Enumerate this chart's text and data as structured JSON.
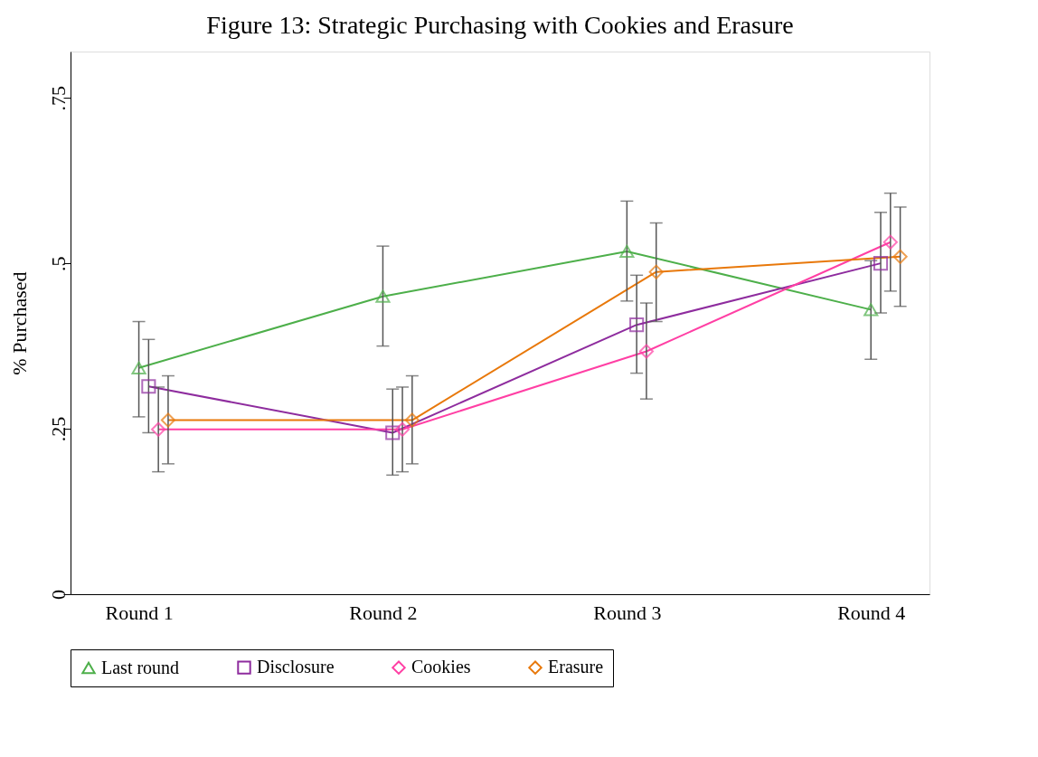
{
  "chart_data": {
    "type": "line",
    "title": "Figure 13: Strategic Purchasing with Cookies and Erasure",
    "ylabel": "% Purchased",
    "categories": [
      "Round 1",
      "Round 2",
      "Round 3",
      "Round 4"
    ],
    "ylim": [
      0,
      0.82
    ],
    "yticks": [
      0,
      {
        "value": 0.25,
        "label": ".25"
      },
      {
        "value": 0.5,
        "label": ".5"
      },
      {
        "value": 0.75,
        "label": ".75"
      }
    ],
    "grid": false,
    "legend": "bottom",
    "line_style": "solid",
    "series": [
      {
        "name": "Last round",
        "color": "#4daf4a",
        "marker": "triangle",
        "values": [
          0.342,
          0.45,
          0.518,
          0.43
        ],
        "errors": [
          [
            0.268,
            0.412
          ],
          [
            0.375,
            0.526
          ],
          [
            0.443,
            0.594
          ],
          [
            0.355,
            0.504
          ]
        ]
      },
      {
        "name": "Disclosure",
        "color": "#8e2c9e",
        "marker": "square",
        "values": [
          0.314,
          0.244,
          0.407,
          0.5
        ],
        "errors": [
          [
            0.244,
            0.385
          ],
          [
            0.18,
            0.31
          ],
          [
            0.334,
            0.482
          ],
          [
            0.425,
            0.577
          ]
        ]
      },
      {
        "name": "Cookies",
        "color": "#ff3fa4",
        "marker": "diamond",
        "values": [
          0.249,
          0.249,
          0.367,
          0.532
        ],
        "errors": [
          [
            0.185,
            0.313
          ],
          [
            0.185,
            0.313
          ],
          [
            0.295,
            0.44
          ],
          [
            0.458,
            0.606
          ]
        ]
      },
      {
        "name": "Erasure",
        "color": "#e8780a",
        "marker": "diamond",
        "values": [
          0.263,
          0.263,
          0.487,
          0.51
        ],
        "errors": [
          [
            0.197,
            0.33
          ],
          [
            0.197,
            0.33
          ],
          [
            0.412,
            0.561
          ],
          [
            0.435,
            0.585
          ]
        ]
      }
    ]
  }
}
